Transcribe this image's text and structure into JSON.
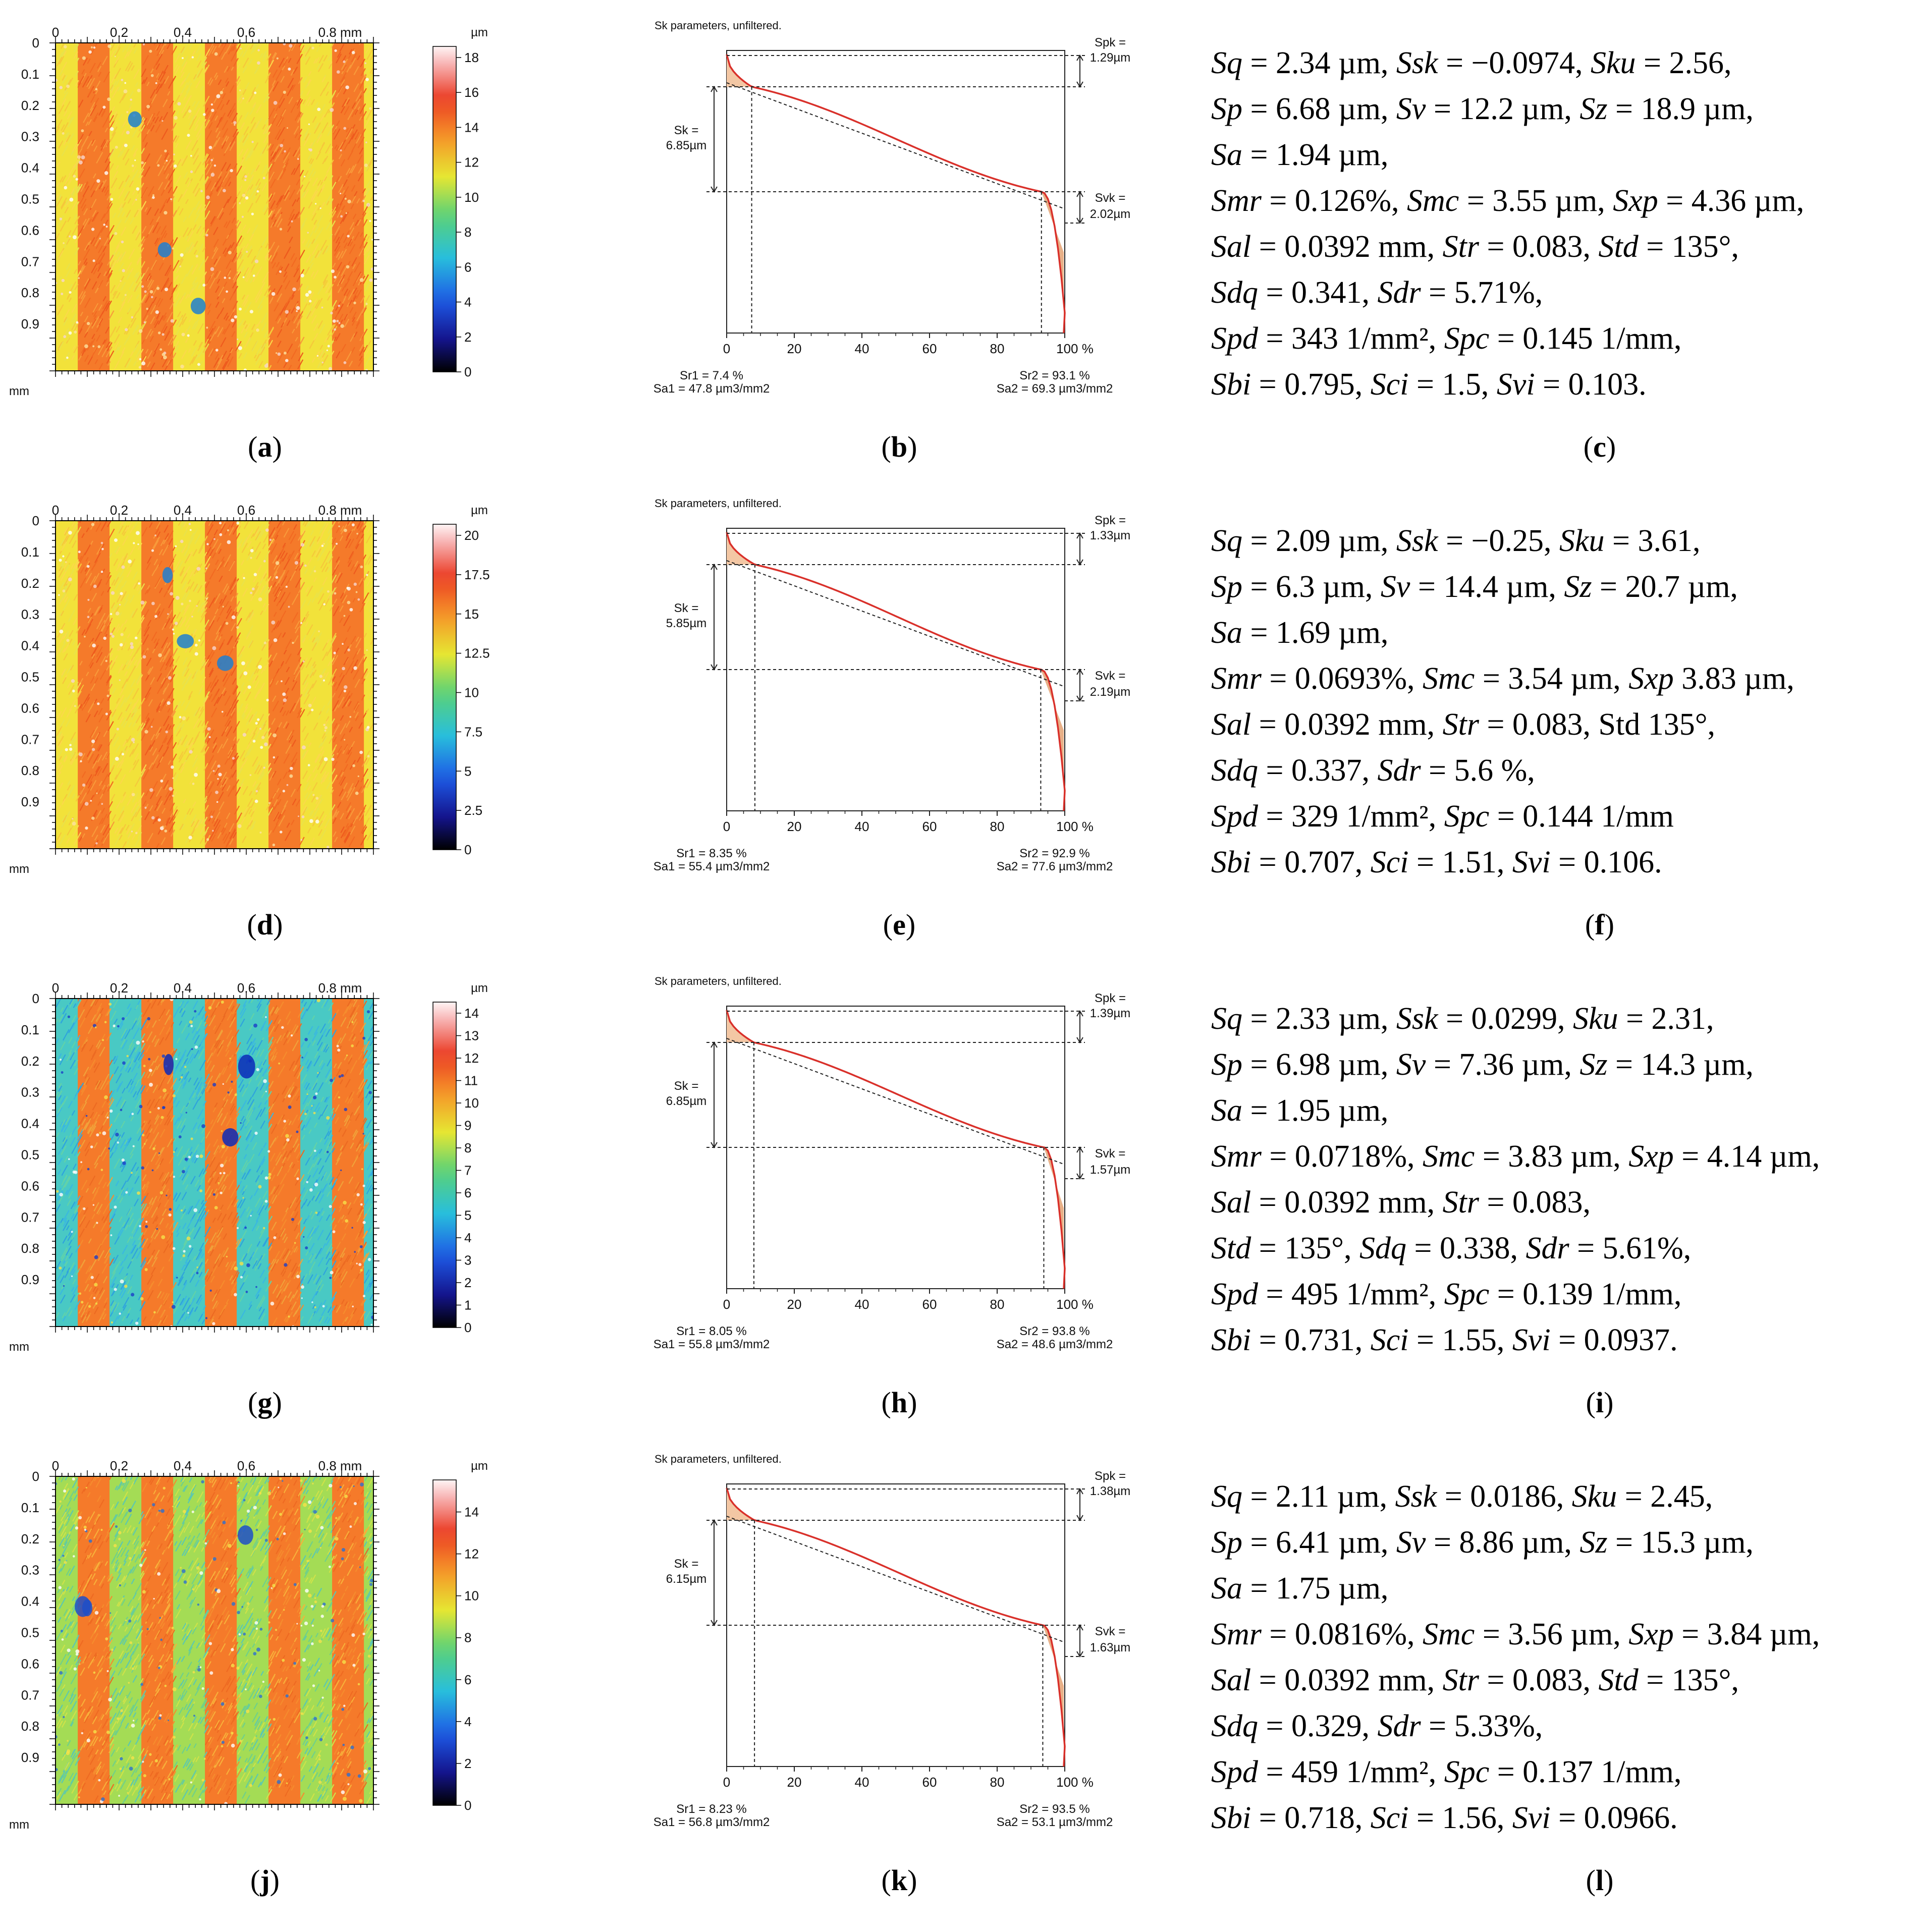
{
  "figure": {
    "map_axis": {
      "x_ticks": [
        "0",
        "0.2",
        "0.4",
        "0.6",
        "0.8 mm"
      ],
      "y_ticks": [
        "0",
        "0.1",
        "0.2",
        "0.3",
        "0.4",
        "0.5",
        "0.6",
        "0.7",
        "0.8",
        "0.9"
      ],
      "y_unit": "mm",
      "colorbar_unit": "µm"
    },
    "abbott_axis": {
      "title": "Sk parameters, unfiltered.",
      "x_ticks": [
        "0",
        "20",
        "40",
        "60",
        "80",
        "100 %"
      ]
    },
    "colors": {
      "curve": "#d9302a",
      "peak_fill": "#f3c7a4",
      "valley_fill": "#e8b088",
      "grid": "#000000"
    },
    "rows": [
      {
        "map": {
          "pattern": "orange-yellow",
          "colorbar_max": 18,
          "colorbar_ticks": [
            "18",
            "16",
            "14",
            "12",
            "10",
            "8",
            "6",
            "4",
            "2",
            "0"
          ]
        },
        "map_caption": "a",
        "abbott": {
          "spk_label": "Spk =",
          "spk_value": "1.29µm",
          "sk_label": "Sk =",
          "sk_value": "6.85µm",
          "svk_label": "Svk =",
          "svk_value": "2.02µm",
          "sr1_text": "Sr1 = 7.4 %",
          "sa1_text": "Sa1 = 47.8 µm3/mm2",
          "sr2_text": "Sr2 = 93.1 %",
          "sa2_text": "Sa2 = 69.3 µm3/mm2",
          "sr1": 7.4,
          "sr2": 93.1
        },
        "abbott_caption": "b",
        "params": [
          "Sq = 2.34 µm, Ssk = −0.0974, Sku = 2.56,",
          "Sp = 6.68 µm, Sv = 12.2 µm, Sz = 18.9 µm,",
          "Sa = 1.94 µm,",
          "Smr = 0.126%, Smc = 3.55 µm, Sxp = 4.36 µm,",
          "Sal = 0.0392 mm, Str = 0.083, Std = 135°,",
          "Sdq = 0.341, Sdr = 5.71%,",
          "Spd = 343 1/mm², Spc = 0.145 1/mm,",
          "Sbi = 0.795, Sci = 1.5, Svi = 0.103."
        ],
        "params_caption": "c"
      },
      {
        "map": {
          "pattern": "orange-yellow",
          "colorbar_max": 20,
          "colorbar_ticks": [
            "20",
            "17.5",
            "15",
            "12.5",
            "10",
            "7.5",
            "5",
            "2.5",
            "0"
          ]
        },
        "map_caption": "d",
        "abbott": {
          "spk_label": "Spk =",
          "spk_value": "1.33µm",
          "sk_label": "Sk =",
          "sk_value": "5.85µm",
          "svk_label": "Svk =",
          "svk_value": "2.19µm",
          "sr1_text": "Sr1 = 8.35 %",
          "sa1_text": "Sa1 = 55.4 µm3/mm2",
          "sr2_text": "Sr2 = 92.9 %",
          "sa2_text": "Sa2 = 77.6 µm3/mm2",
          "sr1": 8.35,
          "sr2": 92.9
        },
        "abbott_caption": "e",
        "params": [
          "Sq = 2.09 µm, Ssk = −0.25, Sku = 3.61,",
          "Sp = 6.3 µm, Sv = 14.4 µm, Sz = 20.7 µm,",
          "Sa = 1.69 µm,",
          "Smr = 0.0693%, Smc = 3.54 µm, Sxp 3.83 µm,",
          "Sal = 0.0392 mm, Str = 0.083, Std 135°,",
          "Sdq = 0.337, Sdr = 5.6 %,",
          "Spd = 329 1/mm², Spc = 0.144 1/mm",
          "Sbi = 0.707, Sci = 1.51, Svi = 0.106."
        ],
        "params_caption": "f"
      },
      {
        "map": {
          "pattern": "orange-blue",
          "colorbar_max": 14,
          "colorbar_ticks": [
            "14",
            "13",
            "12",
            "11",
            "10",
            "9",
            "8",
            "7",
            "6",
            "5",
            "4",
            "3",
            "2",
            "1",
            "0"
          ]
        },
        "map_caption": "g",
        "abbott": {
          "spk_label": "Spk =",
          "spk_value": "1.39µm",
          "sk_label": "Sk =",
          "sk_value": "6.85µm",
          "svk_label": "Svk =",
          "svk_value": "1.57µm",
          "sr1_text": "Sr1 = 8.05 %",
          "sa1_text": "Sa1 = 55.8 µm3/mm2",
          "sr2_text": "Sr2 = 93.8 %",
          "sa2_text": "Sa2 = 48.6 µm3/mm2",
          "sr1": 8.05,
          "sr2": 93.8
        },
        "abbott_caption": "h",
        "params": [
          "Sq = 2.33 µm, Ssk = 0.0299, Sku = 2.31,",
          "Sp = 6.98 µm, Sv = 7.36 µm, Sz = 14.3 µm,",
          "Sa = 1.95 µm,",
          "Smr = 0.0718%, Smc = 3.83 µm, Sxp = 4.14 µm,",
          "Sal = 0.0392 mm, Str = 0.083,",
          "Std = 135°, Sdq = 0.338, Sdr = 5.61%,",
          "Spd = 495 1/mm², Spc = 0.139 1/mm,",
          "Sbi = 0.731, Sci = 1.55, Svi = 0.0937."
        ],
        "params_caption": "i"
      },
      {
        "map": {
          "pattern": "orange-green",
          "colorbar_max": 15,
          "colorbar_ticks": [
            "14",
            "12",
            "10",
            "8",
            "6",
            "4",
            "2",
            "0"
          ]
        },
        "map_caption": "j",
        "abbott": {
          "spk_label": "Spk =",
          "spk_value": "1.38µm",
          "sk_label": "Sk =",
          "sk_value": "6.15µm",
          "svk_label": "Svk =",
          "svk_value": "1.63µm",
          "sr1_text": "Sr1 = 8.23 %",
          "sa1_text": "Sa1 = 56.8 µm3/mm2",
          "sr2_text": "Sr2 = 93.5 %",
          "sa2_text": "Sa2 = 53.1 µm3/mm2",
          "sr1": 8.23,
          "sr2": 93.5
        },
        "abbott_caption": "k",
        "params": [
          "Sq = 2.11 µm, Ssk = 0.0186, Sku = 2.45,",
          "Sp = 6.41 µm, Sv = 8.86 µm, Sz = 15.3 µm,",
          "Sa = 1.75 µm,",
          "Smr = 0.0816%, Smc = 3.56 µm, Sxp = 3.84 µm,",
          "Sal = 0.0392 mm, Str = 0.083, Std = 135°,",
          "Sdq = 0.329, Sdr = 5.33%,",
          "Spd = 459 1/mm², Spc = 0.137 1/mm,",
          "Sbi = 0.718, Sci = 1.56, Svi = 0.0966."
        ],
        "params_caption": "l"
      }
    ]
  }
}
